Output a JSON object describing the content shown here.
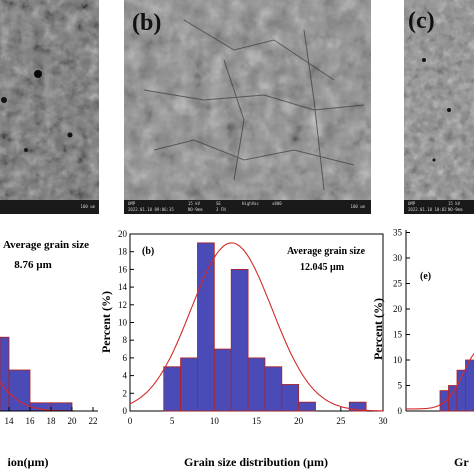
{
  "panels": {
    "sem_b_label": "(b)",
    "sem_c_label": "(c)",
    "sem_footer_a": {
      "scale": "100 um"
    },
    "sem_footer_b": {
      "op": "UMP",
      "date": "2022.01.10 09:06:35",
      "kv": "15 kV",
      "wd": "SE",
      "mode": "HighVac",
      "mag": "x800",
      "det": "NO-9mm",
      "spot": "3 FN",
      "scale": "100 um"
    },
    "sem_footer_c": {
      "op": "UMP",
      "date": "2022.01.10 10:02",
      "kv": "15 kV",
      "det": "NO-9mm"
    }
  },
  "chart_data": [
    {
      "type": "bar",
      "panel_label": "",
      "title_line1": "Average grain size",
      "title_line2": "8.76 µm",
      "xlabel_visible": "ion(µm)",
      "x_ticks": [
        14,
        16,
        18,
        20,
        22
      ],
      "bins": [
        {
          "x0": 12,
          "x1": 14,
          "y": 9
        },
        {
          "x0": 14,
          "x1": 16,
          "y": 5
        },
        {
          "x0": 16,
          "x1": 18,
          "y": 1
        },
        {
          "x0": 18,
          "x1": 20,
          "y": 1
        }
      ],
      "fit": "normal"
    },
    {
      "type": "bar",
      "panel_label": "(b)",
      "title_line1": "Average grain size",
      "title_line2": "12.045 µm",
      "xlabel": "Grain size distribution (µm)",
      "ylabel": "Percent (%)",
      "xlim": [
        0,
        30
      ],
      "ylim": [
        0,
        20
      ],
      "x_ticks": [
        0,
        5,
        10,
        15,
        20,
        25,
        30
      ],
      "y_ticks": [
        0,
        2,
        4,
        6,
        8,
        10,
        12,
        14,
        16,
        18,
        20
      ],
      "bins": [
        {
          "x0": 4,
          "x1": 6,
          "y": 5
        },
        {
          "x0": 6,
          "x1": 8,
          "y": 6
        },
        {
          "x0": 8,
          "x1": 10,
          "y": 19
        },
        {
          "x0": 10,
          "x1": 12,
          "y": 7
        },
        {
          "x0": 12,
          "x1": 14,
          "y": 16
        },
        {
          "x0": 14,
          "x1": 16,
          "y": 6
        },
        {
          "x0": 16,
          "x1": 18,
          "y": 5
        },
        {
          "x0": 18,
          "x1": 20,
          "y": 3
        },
        {
          "x0": 20,
          "x1": 22,
          "y": 1
        },
        {
          "x0": 26,
          "x1": 28,
          "y": 1
        }
      ],
      "fit": {
        "kind": "normal",
        "mean": 12.045,
        "peak": 19,
        "sigma": 4.8
      }
    },
    {
      "type": "bar",
      "panel_label": "(e)",
      "ylabel": "Percent (%)",
      "xlabel_visible": "Gr",
      "ylim": [
        0,
        35
      ],
      "y_ticks": [
        0,
        5,
        10,
        15,
        20,
        25,
        30,
        35
      ],
      "bins": [
        {
          "y": 4
        },
        {
          "y": 5
        },
        {
          "y": 8
        },
        {
          "y": 10
        }
      ],
      "fit": "normal"
    }
  ],
  "colors": {
    "bar_fill": "#4b4bb8",
    "bar_edge": "#b02020",
    "fit_curve": "#d42a2a"
  }
}
